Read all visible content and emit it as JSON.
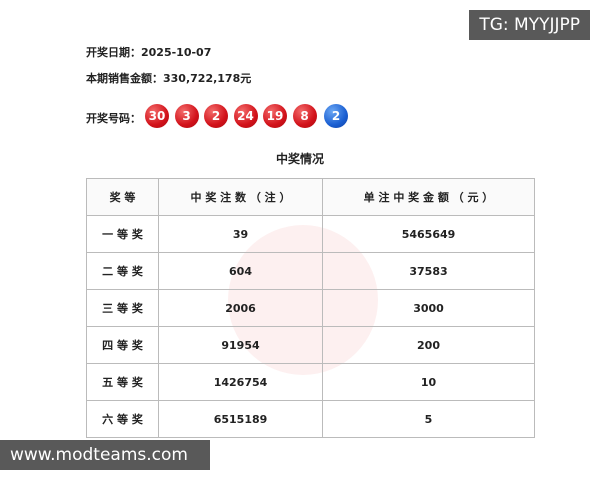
{
  "watermark_top": "TG: MYYJJPP",
  "watermark_bottom": "www.modteams.com",
  "header": {
    "date_label": "开奖日期：",
    "date": "2025-10-07",
    "sales_label": "本期销售金额：",
    "sales": "330,722,178元",
    "numbers_label": "开奖号码："
  },
  "red_balls": [
    30,
    3,
    2,
    24,
    19,
    8
  ],
  "blue_balls": [
    2
  ],
  "table": {
    "title": "中奖情况",
    "header": [
      "奖 等",
      "中 奖 注 数 （ 注 ）",
      "单 注 中 奖 金 额 （ 元 ）"
    ],
    "rows": [
      [
        "一 等 奖",
        39,
        5465649
      ],
      [
        "二 等 奖",
        604,
        37583
      ],
      [
        "三 等 奖",
        2006,
        3000
      ],
      [
        "四 等 奖",
        91954,
        200
      ],
      [
        "五 等 奖",
        1426754,
        10
      ],
      [
        "六 等 奖",
        6515189,
        5
      ]
    ]
  }
}
